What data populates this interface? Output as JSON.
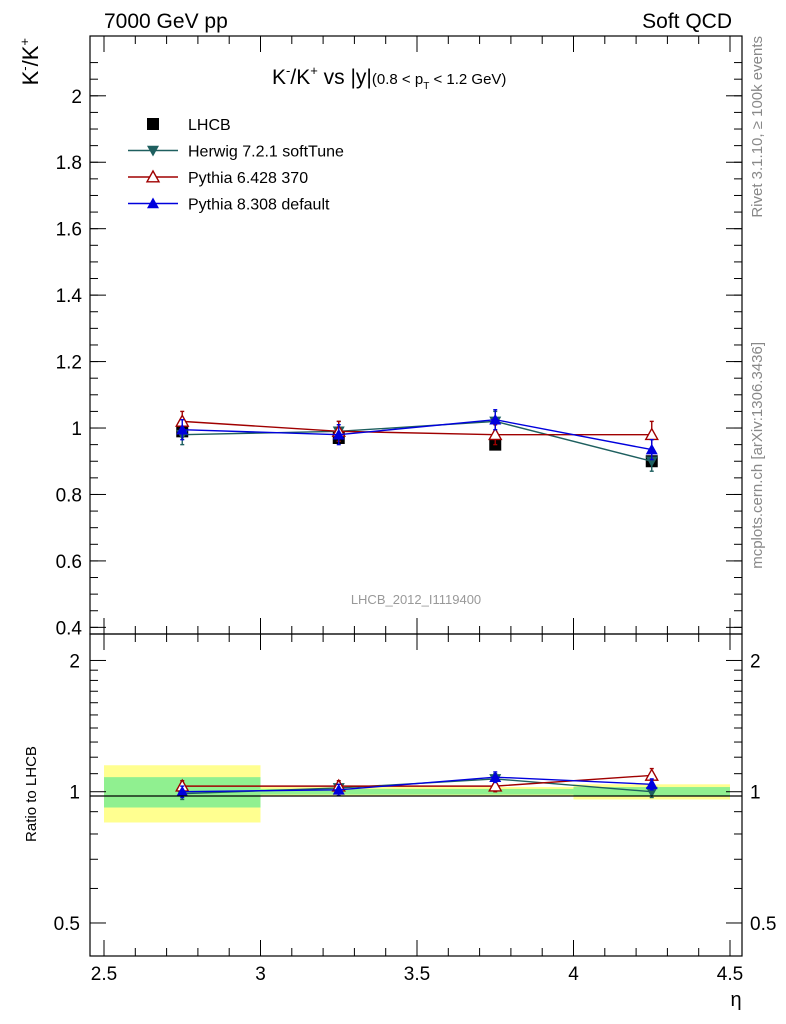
{
  "header": {
    "left": "7000 GeV pp",
    "right": "Soft QCD"
  },
  "side_labels": {
    "rivet": "Rivet 3.1.10, ≥ 100k events",
    "mcplots": "mcplots.cern.ch [arXiv:1306.3436]"
  },
  "watermark": "LHCB_2012_I1119400",
  "colors": {
    "LHCB": "#000000",
    "Herwig": "#1e5f5f",
    "Pythia6": "#a00000",
    "Pythia8": "#0000dd",
    "band_inner": "#90f090",
    "band_outer": "#ffff90"
  },
  "chart_data": [
    {
      "type": "line",
      "title_main": "K⁻/K⁺ vs |y|",
      "title_cut": "(0.8 < p",
      "title_cut_sub": "T",
      "title_cut_end": " < 1.2 GeV)",
      "ylabel": "K⁻/K⁺",
      "xlabel": "η",
      "xlim": [
        2.5,
        4.5
      ],
      "ylim": [
        0.38,
        2.18
      ],
      "xticks": [
        "2.5",
        "3",
        "3.5",
        "4",
        "4.5"
      ],
      "yticks": [
        "0.4",
        "0.6",
        "0.8",
        "1",
        "1.2",
        "1.4",
        "1.6",
        "1.8",
        "2"
      ],
      "x": [
        2.75,
        3.25,
        3.75,
        4.25
      ],
      "series": [
        {
          "name": "LHCB",
          "key": "LHCB",
          "marker": "square",
          "values": [
            0.99,
            0.97,
            0.95,
            0.9
          ],
          "errors": [
            0.01,
            0.01,
            0.01,
            0.01
          ]
        },
        {
          "name": "Herwig 7.2.1 softTune",
          "key": "Herwig",
          "marker": "tri-down",
          "values": [
            0.98,
            0.99,
            1.02,
            0.9
          ],
          "errors": [
            0.03,
            0.03,
            0.03,
            0.03
          ]
        },
        {
          "name": "Pythia 6.428 370",
          "key": "Pythia6",
          "marker": "tri-up-open",
          "values": [
            1.02,
            0.99,
            0.98,
            0.98
          ],
          "errors": [
            0.03,
            0.03,
            0.03,
            0.04
          ]
        },
        {
          "name": "Pythia 8.308 default",
          "key": "Pythia8",
          "marker": "tri-up",
          "values": [
            0.995,
            0.98,
            1.025,
            0.935
          ],
          "errors": [
            0.03,
            0.03,
            0.03,
            0.03
          ]
        }
      ]
    },
    {
      "type": "line",
      "ylabel": "Ratio to LHCB",
      "xlabel": "η",
      "xlim": [
        2.5,
        4.5
      ],
      "ylim": [
        0.42,
        2.3
      ],
      "yscale": "log",
      "yticks": [
        "0.5",
        "1",
        "2"
      ],
      "x": [
        2.75,
        3.25,
        3.75,
        4.25
      ],
      "bands": [
        {
          "x0": 2.5,
          "x1": 3.0,
          "inner": [
            0.92,
            1.08
          ],
          "outer": [
            0.85,
            1.15
          ]
        },
        {
          "x0": 3.0,
          "x1": 3.5,
          "inner": [
            0.985,
            1.015
          ],
          "outer": [
            0.975,
            1.025
          ]
        },
        {
          "x0": 3.5,
          "x1": 4.0,
          "inner": [
            0.985,
            1.015
          ],
          "outer": [
            0.975,
            1.025
          ]
        },
        {
          "x0": 4.0,
          "x1": 4.5,
          "inner": [
            0.975,
            1.025
          ],
          "outer": [
            0.96,
            1.04
          ]
        }
      ],
      "series": [
        {
          "name": "Herwig 7.2.1 softTune",
          "key": "Herwig",
          "marker": "tri-down",
          "values": [
            0.99,
            1.02,
            1.07,
            1.0
          ],
          "errors": [
            0.03,
            0.03,
            0.03,
            0.03
          ]
        },
        {
          "name": "Pythia 6.428 370",
          "key": "Pythia6",
          "marker": "tri-up-open",
          "values": [
            1.03,
            1.03,
            1.03,
            1.09
          ],
          "errors": [
            0.03,
            0.03,
            0.03,
            0.04
          ]
        },
        {
          "name": "Pythia 8.308 default",
          "key": "Pythia8",
          "marker": "tri-up",
          "values": [
            1.0,
            1.01,
            1.08,
            1.04
          ],
          "errors": [
            0.03,
            0.03,
            0.03,
            0.03
          ]
        }
      ]
    }
  ]
}
